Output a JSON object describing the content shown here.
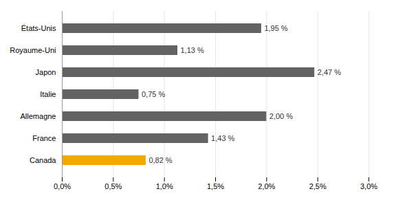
{
  "chart_data": {
    "type": "bar",
    "orientation": "horizontal",
    "categories": [
      "Canada",
      "France",
      "Allemagne",
      "Italie",
      "Japon",
      "Royaume-Uni",
      "États-Unis"
    ],
    "values": [
      0.0082,
      0.0143,
      0.02,
      0.0075,
      0.0247,
      0.0113,
      0.0195
    ],
    "value_labels": [
      "0,82 %",
      "1,43 %",
      "2,00 %",
      "0,75 %",
      "2,47 %",
      "1,13 %",
      "1,95 %"
    ],
    "data_labels": true,
    "colors": [
      "#F5A800",
      "#636363",
      "#636363",
      "#636363",
      "#636363",
      "#636363",
      "#636363"
    ],
    "xlim": [
      0,
      0.03
    ],
    "xticks": [
      {
        "value": 0.0,
        "label": "0,0%"
      },
      {
        "value": 0.005,
        "label": "0,5%"
      },
      {
        "value": 0.01,
        "label": "1,0%"
      },
      {
        "value": 0.015,
        "label": "1,5%"
      },
      {
        "value": 0.02,
        "label": "2,0%"
      },
      {
        "value": 0.025,
        "label": "2,5%"
      },
      {
        "value": 0.03,
        "label": "3,0%"
      }
    ],
    "grid": true
  }
}
